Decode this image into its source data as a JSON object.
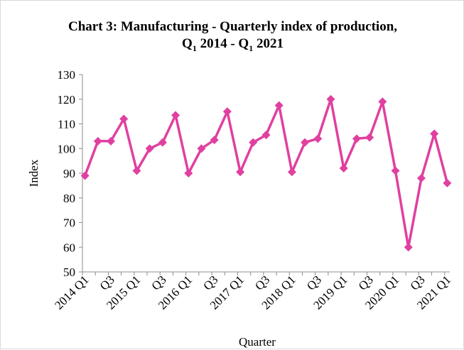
{
  "chart_data": {
    "type": "line",
    "title": "Chart 3: Manufacturing - Quarterly index of production,",
    "subtitle_parts": [
      "Q",
      "1",
      " 2014  - Q",
      "1",
      " 2021"
    ],
    "xlabel": "Quarter",
    "ylabel": "Index",
    "ylim": [
      50,
      130
    ],
    "yticks": [
      50,
      60,
      70,
      80,
      90,
      100,
      110,
      120,
      130
    ],
    "grid": false,
    "legend": "none",
    "line_color": "#e040a0",
    "categories": [
      "2014 Q1",
      "",
      "Q3",
      "",
      "2015 Q1",
      "",
      "Q3",
      "",
      "2016 Q1",
      "",
      "Q3",
      "",
      "2017 Q1",
      "",
      "Q3",
      "",
      "2018 Q1",
      "",
      "Q3",
      "",
      "2019 Q1",
      "",
      "Q3",
      "",
      "2020 Q1",
      "",
      "Q3",
      "",
      "2021 Q1"
    ],
    "values": [
      89,
      103,
      103,
      112,
      91,
      100,
      102.5,
      113.5,
      90,
      100,
      103.5,
      115,
      90.5,
      102.5,
      105.5,
      117.5,
      90.5,
      102.5,
      104,
      120,
      92,
      104,
      104.5,
      119,
      91,
      60,
      88,
      106,
      86
    ]
  }
}
